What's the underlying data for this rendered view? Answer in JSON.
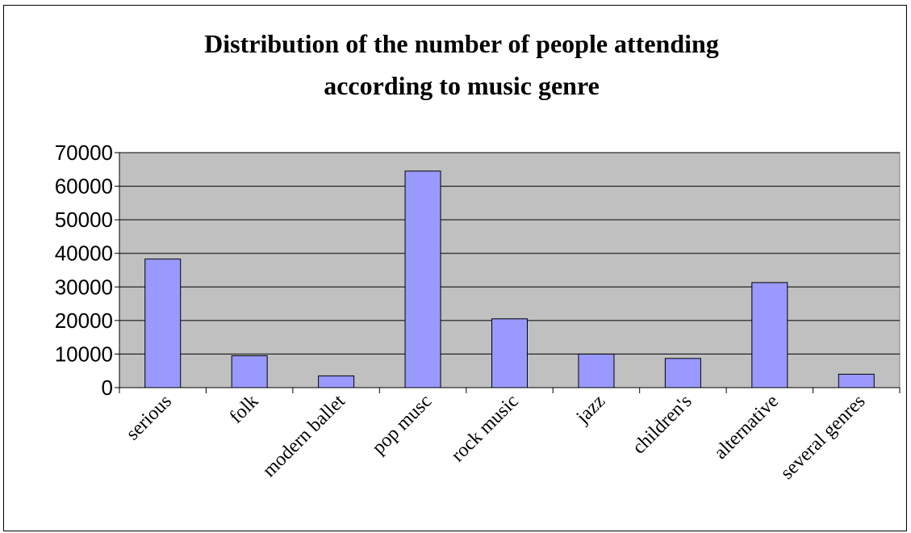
{
  "chart_data": {
    "type": "bar",
    "title_lines": [
      "Distribution of the number of people attending",
      "according to music genre"
    ],
    "categories": [
      "serious",
      "folk",
      "modern ballet",
      "pop musc",
      "rock music",
      "jazz",
      "children's",
      "alternative",
      "several genres"
    ],
    "values": [
      38300,
      9500,
      3500,
      64500,
      20500,
      10000,
      8700,
      31300,
      4000
    ],
    "ylim": [
      0,
      70000
    ],
    "yticks": [
      0,
      10000,
      20000,
      30000,
      40000,
      50000,
      60000,
      70000
    ],
    "grid": true,
    "legend": "none",
    "xlabel": "",
    "ylabel": ""
  },
  "colors": {
    "plot_background": "#c0c0c0",
    "bar_fill": "#9999ff",
    "bar_stroke": "#000000",
    "gridline": "#000000"
  }
}
